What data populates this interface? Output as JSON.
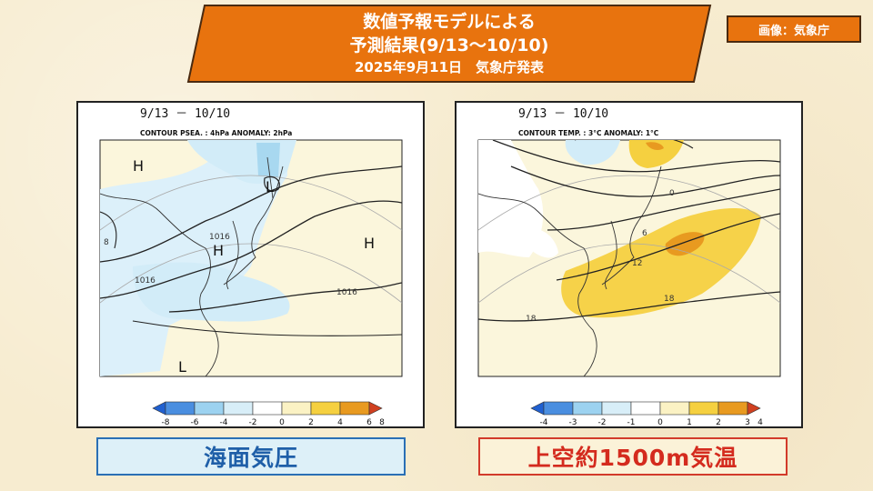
{
  "title": {
    "line1": "数値予報モデルによる",
    "line2": "予測結果(9/13～10/10)",
    "line3": "2025年9月11日　気象庁発表"
  },
  "credit": "画像：気象庁",
  "colors": {
    "banner": "#e8730e",
    "background": "#f7ecd0",
    "map_bg": "#fbf6dc"
  },
  "left_map": {
    "period": "9/13 － 10/10",
    "contour_label": "CONTOUR PSEA. :  4hPa    ANOMALY:  2hPa",
    "isobar_labels": [
      "1016",
      "1016",
      "1016",
      "8"
    ],
    "pressure_marks": [
      "H",
      "H",
      "H",
      "L",
      "L"
    ],
    "legend_ticks": [
      "-8",
      "-6",
      "-4",
      "-2",
      "0",
      "2",
      "4",
      "6",
      "8"
    ],
    "legend_colors": [
      "#2060d0",
      "#4aa0e0",
      "#9cd2f0",
      "#d8eef8",
      "#ffffff",
      "#fbf2c4",
      "#f5d040",
      "#e89a20",
      "#d04020"
    ],
    "caption": "海面気圧"
  },
  "right_map": {
    "period": "9/13 － 10/10",
    "contour_label": "CONTOUR TEMP. :  3°C    ANOMALY:  1°C",
    "isotherm_labels": [
      "0",
      "6",
      "12",
      "18",
      "18"
    ],
    "legend_ticks": [
      "-4",
      "-3",
      "-2",
      "-1",
      "0",
      "1",
      "2",
      "3",
      "4"
    ],
    "legend_colors": [
      "#2060d0",
      "#4aa0e0",
      "#9cd2f0",
      "#d8eef8",
      "#ffffff",
      "#fbf2c4",
      "#f5d040",
      "#e89a20",
      "#d04020"
    ],
    "caption": "上空約1500m気温"
  }
}
